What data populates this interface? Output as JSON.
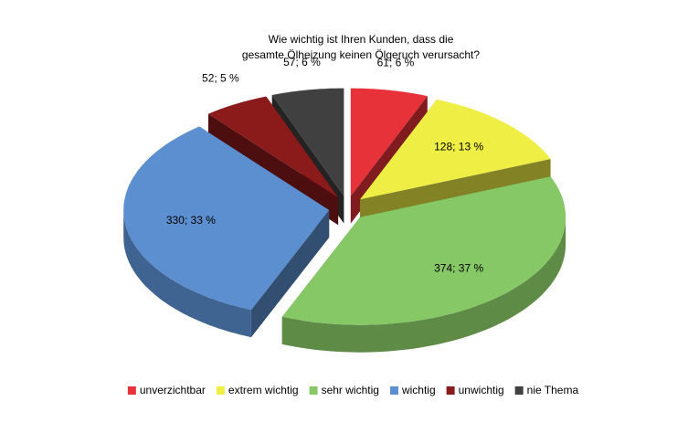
{
  "chart_data": {
    "type": "pie3d",
    "title": [
      "Wie wichtig ist Ihren Kunden, dass die",
      "gesamte Ölheizung keinen Ölgeruch verursacht?"
    ],
    "categories": [
      "unverzichtbar",
      "extrem wichtig",
      "sehr wichtig",
      "wichtig",
      "unwichtig",
      "nie Thema"
    ],
    "values": [
      61,
      128,
      374,
      330,
      52,
      57
    ],
    "value_labels": [
      "61; 6 %",
      "128; 13 %",
      "374; 37 %",
      "330; 33 %",
      "52; 5 %",
      "57; 6 %"
    ],
    "colors": [
      "#e8323a",
      "#eeee44",
      "#86c866",
      "#5b8fd0",
      "#8b1a1a",
      "#404040"
    ],
    "legend": "bottom"
  }
}
